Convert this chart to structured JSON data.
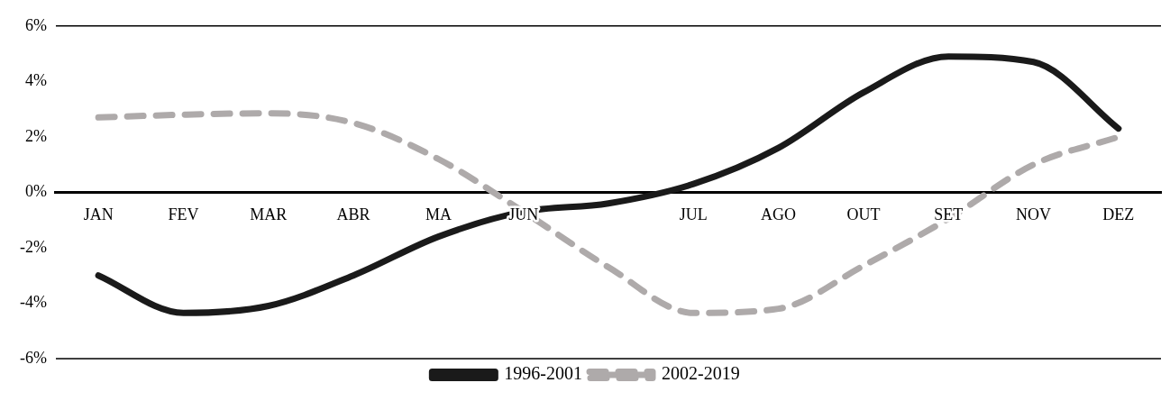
{
  "chart_data": {
    "type": "line",
    "categories": [
      "JAN",
      "FEV",
      "MAR",
      "ABR",
      "MA",
      "JUN",
      null,
      "JUL",
      "AGO",
      "OUT",
      "SET",
      "NOV",
      "DEZ"
    ],
    "series": [
      {
        "name": "1996-2001",
        "color": "#1a1a1a",
        "line_style": "solid",
        "values": [
          -3.0,
          -4.35,
          -4.1,
          -3.0,
          -1.6,
          -0.7,
          -0.4,
          0.3,
          1.6,
          3.6,
          4.9,
          4.7,
          2.3
        ]
      },
      {
        "name": "2002-2019",
        "color": "#aeaaaa",
        "line_style": "dashed",
        "values": [
          2.7,
          2.8,
          2.85,
          2.5,
          1.2,
          -0.7,
          -2.7,
          -4.35,
          -4.2,
          -2.65,
          -0.95,
          1.0,
          2.0
        ]
      }
    ],
    "ylim": [
      -6,
      6
    ],
    "yticks": [
      {
        "value": -6,
        "label": "-6%"
      },
      {
        "value": -4,
        "label": "-4%"
      },
      {
        "value": -2,
        "label": "-2%"
      },
      {
        "value": 0,
        "label": "0%"
      },
      {
        "value": 2,
        "label": "2%"
      },
      {
        "value": 4,
        "label": "4%"
      },
      {
        "value": 6,
        "label": "6%"
      }
    ],
    "marker": "none",
    "legend": "bottom"
  }
}
